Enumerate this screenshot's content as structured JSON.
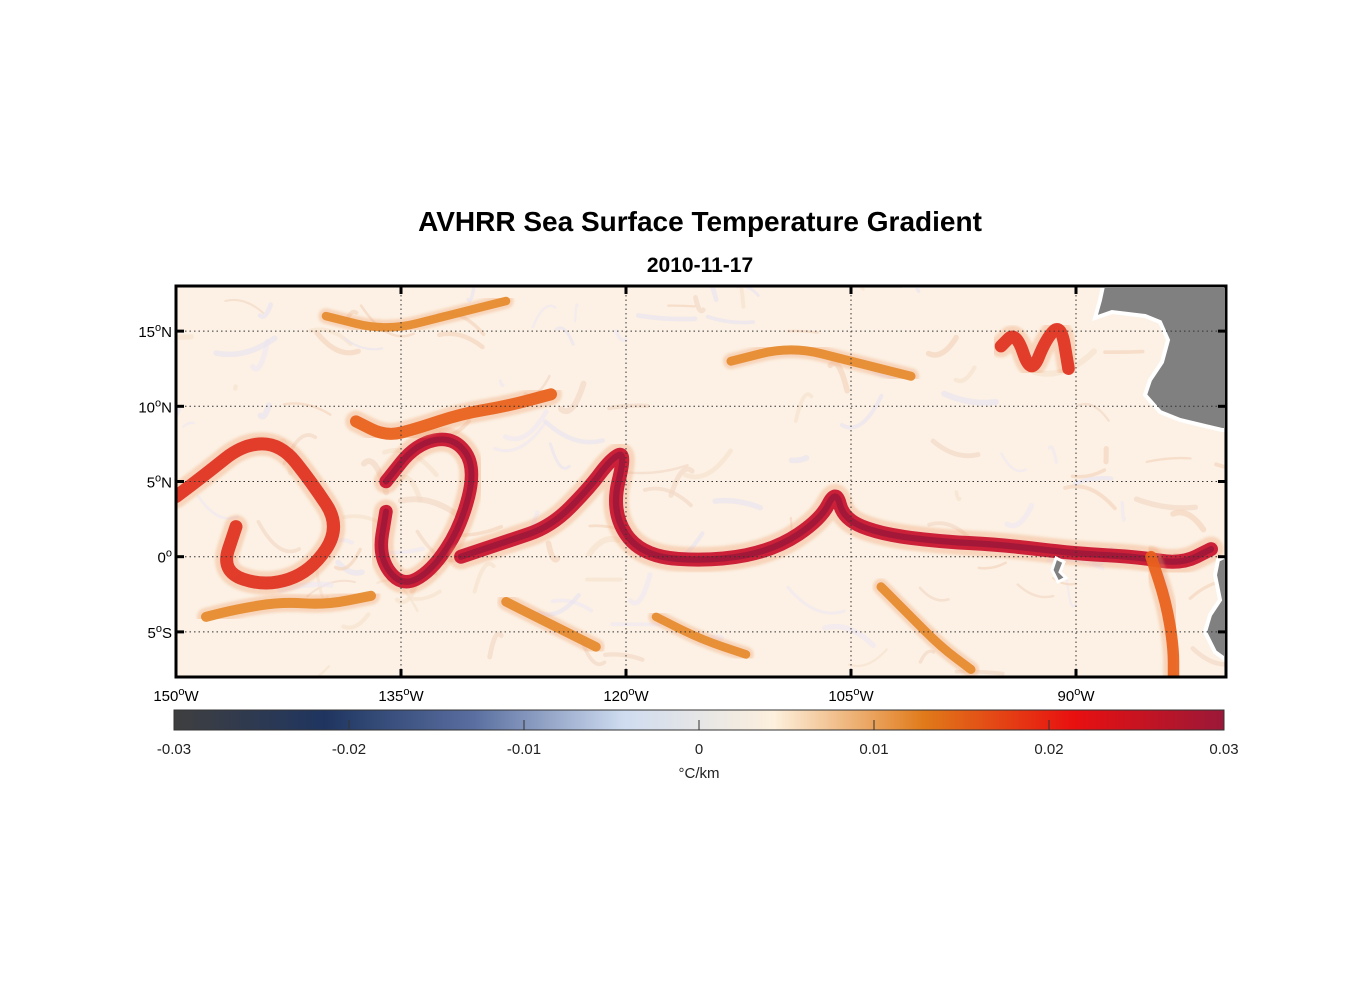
{
  "title": "AVHRR Sea Surface Temperature Gradient",
  "subtitle": "2010-11-17",
  "map": {
    "lon_range": [
      -150,
      -80
    ],
    "lat_range": [
      -8,
      18
    ],
    "lat_ticks": [
      {
        "value": 15,
        "num": "15",
        "hemi": "N"
      },
      {
        "value": 10,
        "num": "10",
        "hemi": "N"
      },
      {
        "value": 5,
        "num": "5",
        "hemi": "N"
      },
      {
        "value": 0,
        "num": "0",
        "hemi": ""
      },
      {
        "value": -5,
        "num": "5",
        "hemi": "S"
      }
    ],
    "lon_ticks": [
      {
        "value": -150,
        "num": "150",
        "hemi": "W"
      },
      {
        "value": -135,
        "num": "135",
        "hemi": "W"
      },
      {
        "value": -120,
        "num": "120",
        "hemi": "W"
      },
      {
        "value": -105,
        "num": "105",
        "hemi": "W"
      },
      {
        "value": -90,
        "num": "90",
        "hemi": "W"
      }
    ],
    "grid": "dotted",
    "land_color": "#808080",
    "fronts": [
      {
        "strength": 0.9,
        "points": [
          [
            -150,
            4
          ],
          [
            -148,
            5.5
          ],
          [
            -145.5,
            7.5
          ],
          [
            -143,
            7.5
          ],
          [
            -141,
            5
          ],
          [
            -139,
            2
          ],
          [
            -141,
            -1
          ],
          [
            -144,
            -2
          ],
          [
            -147,
            -1
          ],
          [
            -146,
            2
          ]
        ]
      },
      {
        "strength": 0.95,
        "points": [
          [
            -136,
            3
          ],
          [
            -136.5,
            0
          ],
          [
            -135,
            -2
          ],
          [
            -133,
            -1
          ],
          [
            -131,
            2
          ],
          [
            -130,
            6
          ],
          [
            -131.5,
            8
          ],
          [
            -134,
            7.5
          ],
          [
            -136,
            5
          ]
        ]
      },
      {
        "strength": 0.8,
        "points": [
          [
            -138,
            9
          ],
          [
            -136,
            8
          ],
          [
            -134,
            8.5
          ],
          [
            -131,
            9.5
          ],
          [
            -128,
            10
          ],
          [
            -125,
            10.8
          ]
        ]
      },
      {
        "strength": 1.0,
        "points": [
          [
            -131,
            0
          ],
          [
            -128,
            1
          ],
          [
            -125,
            2
          ],
          [
            -122.5,
            4.5
          ],
          [
            -121,
            6.5
          ],
          [
            -120,
            7
          ],
          [
            -121,
            3
          ],
          [
            -119,
            0
          ],
          [
            -114,
            -0.3
          ],
          [
            -110,
            0.5
          ],
          [
            -107,
            2.5
          ],
          [
            -106,
            4.5
          ],
          [
            -105.5,
            2.5
          ],
          [
            -103,
            1.5
          ],
          [
            -99,
            1
          ],
          [
            -95,
            0.8
          ],
          [
            -90,
            0.2
          ],
          [
            -86,
            0
          ],
          [
            -83,
            -0.5
          ],
          [
            -81,
            0.5
          ]
        ]
      },
      {
        "strength": 0.85,
        "points": [
          [
            -95,
            14
          ],
          [
            -94,
            15
          ],
          [
            -93,
            12
          ],
          [
            -92,
            14.5
          ],
          [
            -91,
            15.5
          ],
          [
            -90.5,
            12.5
          ]
        ]
      },
      {
        "strength": 0.75,
        "points": [
          [
            -85,
            0
          ],
          [
            -84,
            -3
          ],
          [
            -83.5,
            -6
          ],
          [
            -83.5,
            -8
          ]
        ]
      },
      {
        "strength": 0.6,
        "points": [
          [
            -148,
            -4
          ],
          [
            -146,
            -3.5
          ],
          [
            -143,
            -3
          ],
          [
            -140,
            -3.2
          ],
          [
            -137,
            -2.6
          ]
        ]
      },
      {
        "strength": 0.55,
        "points": [
          [
            -128,
            -3
          ],
          [
            -126,
            -4
          ],
          [
            -124,
            -5
          ],
          [
            -122,
            -6
          ]
        ]
      },
      {
        "strength": 0.5,
        "points": [
          [
            -113,
            13
          ],
          [
            -109,
            14
          ],
          [
            -105,
            13
          ],
          [
            -101,
            12
          ]
        ]
      },
      {
        "strength": 0.5,
        "points": [
          [
            -103,
            -2
          ],
          [
            -101,
            -4
          ],
          [
            -99,
            -6
          ],
          [
            -97,
            -7.5
          ]
        ]
      },
      {
        "strength": 0.45,
        "points": [
          [
            -140,
            16
          ],
          [
            -136,
            15
          ],
          [
            -132,
            16
          ],
          [
            -128,
            17
          ]
        ]
      },
      {
        "strength": 0.45,
        "points": [
          [
            -118,
            -4
          ],
          [
            -115,
            -5.5
          ],
          [
            -112,
            -6.5
          ]
        ]
      }
    ]
  },
  "colorbar": {
    "min": -0.03,
    "max": 0.03,
    "ticks": [
      "-0.03",
      "-0.02",
      "-0.01",
      "0",
      "0.01",
      "0.02",
      "0.03"
    ],
    "label": "°C/km",
    "stops": [
      "#3f3f3f",
      "#1f3560",
      "#5a6fa0",
      "#cfdcf0",
      "#fdf0dd",
      "#e07a1a",
      "#e81010",
      "#9b1838"
    ]
  }
}
